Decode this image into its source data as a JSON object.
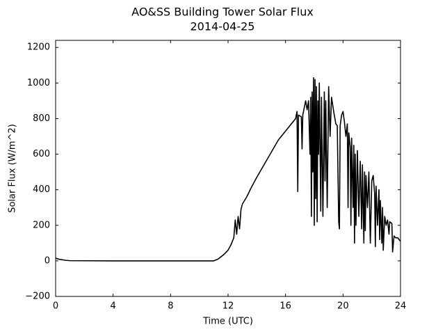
{
  "chart_data": {
    "type": "line",
    "title": "AO&SS Building Tower Solar Flux",
    "subtitle": "2014-04-25",
    "x_label": "Time (UTC)",
    "y_label": "Solar Flux (W/m^2)",
    "color": "#000000",
    "x": [
      0,
      0.3,
      0.7,
      1,
      4,
      8,
      11,
      11.3,
      11.7,
      12,
      12.2,
      12.4,
      12.5,
      12.6,
      12.7,
      12.8,
      12.9,
      13,
      13.3,
      13.6,
      14,
      14.5,
      15,
      15.5,
      16,
      16.5,
      16.7,
      16.8,
      16.85,
      16.9,
      17.1,
      17.15,
      17.2,
      17.4,
      17.5,
      17.6,
      17.7,
      17.75,
      17.8,
      17.85,
      17.9,
      17.95,
      18,
      18.05,
      18.1,
      18.15,
      18.2,
      18.25,
      18.3,
      18.35,
      18.45,
      18.5,
      18.6,
      18.7,
      18.75,
      18.8,
      18.9,
      19,
      19.1,
      19.2,
      19.35,
      19.5,
      19.6,
      19.7,
      19.75,
      19.8,
      19.9,
      20,
      20.1,
      20.2,
      20.3,
      20.35,
      20.4,
      20.5,
      20.55,
      20.6,
      20.7,
      20.75,
      20.8,
      20.85,
      20.9,
      21,
      21.1,
      21.2,
      21.3,
      21.35,
      21.45,
      21.5,
      21.55,
      21.6,
      21.7,
      21.8,
      21.9,
      22,
      22.1,
      22.2,
      22.25,
      22.3,
      22.4,
      22.5,
      22.55,
      22.6,
      22.7,
      22.75,
      22.8,
      22.9,
      23,
      23.1,
      23.2,
      23.25,
      23.4,
      23.45,
      23.55,
      23.65,
      23.8,
      24
    ],
    "values": [
      15,
      8,
      3,
      1,
      0,
      0,
      0,
      10,
      35,
      60,
      90,
      130,
      230,
      150,
      250,
      180,
      290,
      320,
      360,
      410,
      470,
      540,
      610,
      680,
      730,
      780,
      800,
      840,
      390,
      820,
      810,
      630,
      820,
      900,
      850,
      900,
      600,
      920,
      250,
      950,
      500,
      1030,
      200,
      1020,
      350,
      980,
      220,
      900,
      600,
      1000,
      280,
      920,
      250,
      950,
      450,
      900,
      300,
      980,
      700,
      920,
      840,
      770,
      760,
      220,
      180,
      760,
      820,
      840,
      780,
      700,
      770,
      300,
      720,
      640,
      200,
      690,
      300,
      650,
      100,
      600,
      200,
      620,
      250,
      560,
      180,
      540,
      100,
      500,
      170,
      480,
      300,
      500,
      100,
      450,
      480,
      380,
      80,
      420,
      200,
      400,
      120,
      340,
      100,
      300,
      60,
      250,
      200,
      230,
      150,
      220,
      210,
      50,
      140,
      130,
      130,
      110
    ],
    "xlim": [
      0,
      24
    ],
    "xticks": [
      0,
      4,
      8,
      12,
      16,
      20,
      24
    ],
    "ylim": [
      -200,
      1240
    ],
    "yticks": [
      {
        "value": -200,
        "label": "−200"
      },
      0,
      200,
      400,
      600,
      800,
      1000,
      1200
    ]
  }
}
